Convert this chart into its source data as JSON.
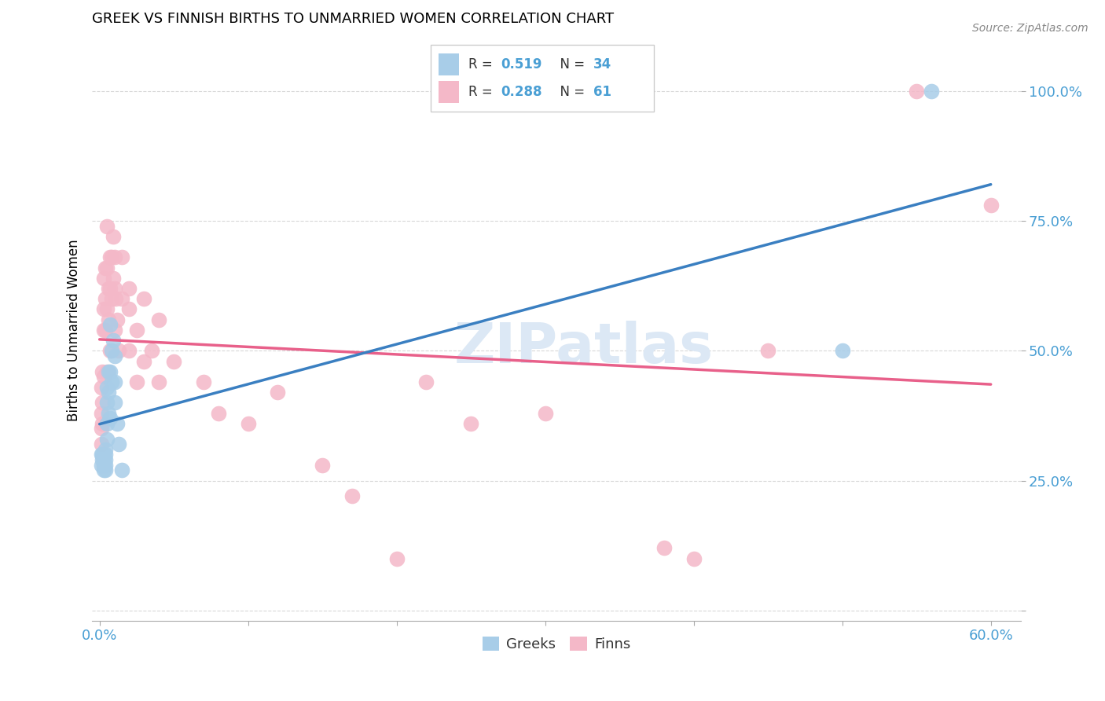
{
  "title": "GREEK VS FINNISH BIRTHS TO UNMARRIED WOMEN CORRELATION CHART",
  "source": "Source: ZipAtlas.com",
  "ylabel": "Births to Unmarried Women",
  "legend_labels": [
    "Greeks",
    "Finns"
  ],
  "legend_r_blue": "0.519",
  "legend_n_blue": "34",
  "legend_r_pink": "0.288",
  "legend_n_pink": "61",
  "color_blue": "#a8cde8",
  "color_pink": "#f4b8c8",
  "color_blue_line": "#3a7fc1",
  "color_pink_line": "#e8608a",
  "color_tick": "#4a9fd4",
  "watermark_color": "#dce8f5",
  "greek_x": [
    0.001,
    0.001,
    0.002,
    0.002,
    0.003,
    0.003,
    0.003,
    0.003,
    0.004,
    0.004,
    0.004,
    0.004,
    0.004,
    0.005,
    0.005,
    0.005,
    0.005,
    0.006,
    0.006,
    0.006,
    0.007,
    0.007,
    0.007,
    0.008,
    0.008,
    0.009,
    0.01,
    0.01,
    0.01,
    0.012,
    0.013,
    0.015,
    0.5,
    0.56
  ],
  "greek_y": [
    0.3,
    0.28,
    0.3,
    0.29,
    0.3,
    0.29,
    0.28,
    0.27,
    0.31,
    0.3,
    0.29,
    0.28,
    0.27,
    0.43,
    0.4,
    0.36,
    0.33,
    0.46,
    0.42,
    0.38,
    0.55,
    0.46,
    0.37,
    0.5,
    0.44,
    0.52,
    0.49,
    0.44,
    0.4,
    0.36,
    0.32,
    0.27,
    0.5,
    1.0
  ],
  "finn_x": [
    0.001,
    0.001,
    0.001,
    0.001,
    0.002,
    0.002,
    0.002,
    0.003,
    0.003,
    0.003,
    0.003,
    0.004,
    0.004,
    0.004,
    0.005,
    0.005,
    0.005,
    0.005,
    0.006,
    0.006,
    0.007,
    0.007,
    0.007,
    0.008,
    0.008,
    0.009,
    0.009,
    0.01,
    0.01,
    0.01,
    0.011,
    0.012,
    0.013,
    0.015,
    0.015,
    0.02,
    0.02,
    0.02,
    0.025,
    0.025,
    0.03,
    0.03,
    0.035,
    0.04,
    0.04,
    0.05,
    0.07,
    0.08,
    0.1,
    0.12,
    0.15,
    0.17,
    0.2,
    0.22,
    0.25,
    0.3,
    0.38,
    0.4,
    0.45,
    0.55,
    0.6
  ],
  "finn_y": [
    0.43,
    0.38,
    0.35,
    0.32,
    0.46,
    0.4,
    0.36,
    0.64,
    0.58,
    0.54,
    0.45,
    0.66,
    0.6,
    0.54,
    0.74,
    0.66,
    0.58,
    0.46,
    0.62,
    0.56,
    0.68,
    0.62,
    0.5,
    0.68,
    0.6,
    0.72,
    0.64,
    0.68,
    0.62,
    0.54,
    0.6,
    0.56,
    0.5,
    0.68,
    0.6,
    0.62,
    0.58,
    0.5,
    0.54,
    0.44,
    0.6,
    0.48,
    0.5,
    0.56,
    0.44,
    0.48,
    0.44,
    0.38,
    0.36,
    0.42,
    0.28,
    0.22,
    0.1,
    0.44,
    0.36,
    0.38,
    0.12,
    0.1,
    0.5,
    1.0,
    0.78
  ],
  "xlim": [
    -0.005,
    0.62
  ],
  "ylim": [
    -0.02,
    1.1
  ],
  "ytick_vals": [
    0.0,
    0.25,
    0.5,
    0.75,
    1.0
  ],
  "ytick_labels": [
    "",
    "25.0%",
    "50.0%",
    "75.0%",
    "100.0%"
  ],
  "xtick_vals": [
    0.0,
    0.1,
    0.2,
    0.3,
    0.4,
    0.5,
    0.6
  ],
  "figsize": [
    14.06,
    8.92
  ],
  "dpi": 100
}
